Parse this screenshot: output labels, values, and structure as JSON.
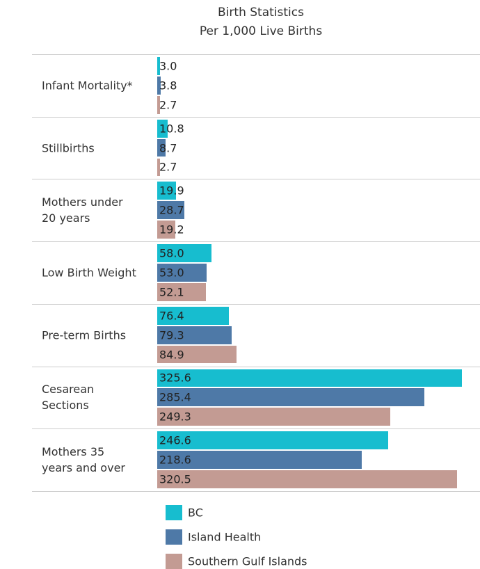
{
  "chart_data": {
    "type": "bar",
    "orientation": "horizontal",
    "title": "Birth Statistics",
    "subtitle": "Per 1,000 Live Births",
    "categories": [
      "Infant Mortality*",
      "Stillbirths",
      "Mothers under\n20 years",
      "Low Birth Weight",
      "Pre-term Births",
      "Cesarean\nSections",
      "Mothers 35\nyears and over"
    ],
    "series": [
      {
        "name": "BC",
        "color": "#17bdcf",
        "values": [
          3.0,
          10.8,
          19.9,
          58.0,
          76.4,
          325.6,
          246.6
        ],
        "value_labels": [
          "3.0",
          "10.8",
          "19.9",
          "58.0",
          "76.4",
          "325.6",
          "246.6"
        ]
      },
      {
        "name": "Island Health",
        "color": "#4e79a7",
        "values": [
          3.8,
          8.7,
          28.7,
          53.0,
          79.3,
          285.4,
          218.6
        ],
        "value_labels": [
          "3.8",
          "8.7",
          "28.7",
          "53.0",
          "79.3",
          "285.4",
          "218.6"
        ]
      },
      {
        "name": "Southern Gulf Islands",
        "color": "#c39b93",
        "values": [
          2.7,
          2.7,
          19.2,
          52.1,
          84.9,
          249.3,
          320.5
        ],
        "value_labels": [
          "2.7",
          "2.7",
          "19.2",
          "52.1",
          "84.9",
          "249.3",
          "320.5"
        ]
      }
    ]
  }
}
